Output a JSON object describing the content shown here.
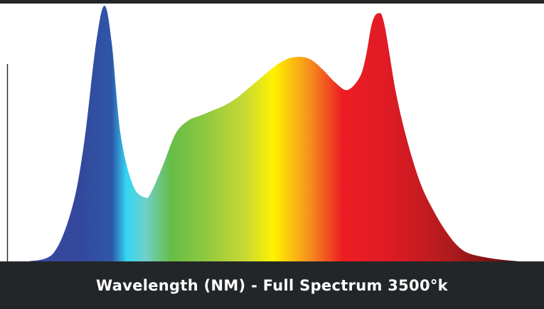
{
  "caption": "Wavelength (NM) - Full Spectrum 3500°k",
  "colors": {
    "bar": "#232628",
    "axis": "#232628",
    "gradient": [
      "#3a4aa0",
      "#33479b",
      "#2e57a8",
      "#34d6f5",
      "#6fd0c8",
      "#66bd47",
      "#8fc842",
      "#c7d935",
      "#fff200",
      "#f7941d",
      "#ed1c24",
      "#e01b24",
      "#b31b1e",
      "#5a0d0d"
    ]
  },
  "chart_data": {
    "type": "area",
    "xlabel": "Wavelength (NM)",
    "ylabel": "",
    "title": "",
    "grid": false,
    "x": [
      380,
      400,
      415,
      425,
      435,
      442,
      448,
      455,
      465,
      475,
      480,
      490,
      500,
      510,
      520,
      530,
      540,
      550,
      560,
      570,
      580,
      590,
      600,
      610,
      620,
      630,
      640,
      650,
      655,
      660,
      665,
      670,
      680,
      690,
      700,
      710,
      720,
      730,
      740,
      760,
      780
    ],
    "y": [
      0.0,
      0.03,
      0.2,
      0.45,
      0.85,
      1.0,
      0.85,
      0.5,
      0.3,
      0.25,
      0.27,
      0.38,
      0.5,
      0.55,
      0.57,
      0.59,
      0.61,
      0.64,
      0.68,
      0.72,
      0.76,
      0.79,
      0.8,
      0.79,
      0.75,
      0.7,
      0.67,
      0.72,
      0.8,
      0.93,
      0.97,
      0.93,
      0.65,
      0.45,
      0.3,
      0.2,
      0.12,
      0.06,
      0.03,
      0.01,
      0.0
    ],
    "xlim": [
      380,
      780
    ],
    "ylim": [
      0,
      1.0
    ]
  }
}
